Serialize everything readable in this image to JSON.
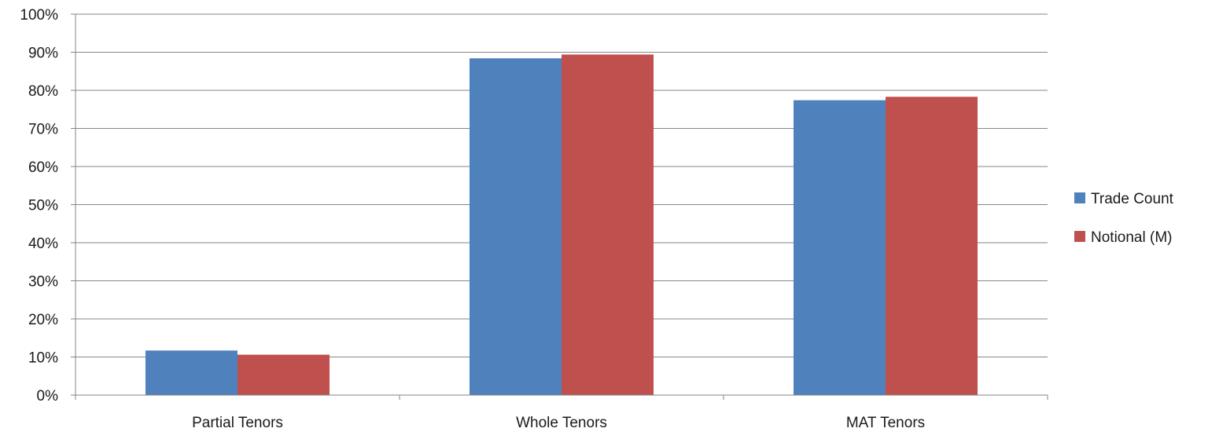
{
  "chart_data": {
    "type": "bar",
    "categories": [
      "Partial Tenors",
      "Whole Tenors",
      "MAT Tenors"
    ],
    "series": [
      {
        "name": "Trade Count",
        "values": [
          11.7,
          88.4,
          77.4
        ],
        "color": "#4f81bd"
      },
      {
        "name": "Notional (M)",
        "values": [
          10.6,
          89.4,
          78.3
        ],
        "color": "#c0504d"
      }
    ],
    "y_ticks": [
      "0%",
      "10%",
      "20%",
      "30%",
      "40%",
      "50%",
      "60%",
      "70%",
      "80%",
      "90%",
      "100%"
    ],
    "ylim": [
      0,
      100
    ],
    "y_unit": "%",
    "grid": true,
    "legend_position": "right",
    "gridline_color": "#868686",
    "axis_color": "#868686"
  }
}
